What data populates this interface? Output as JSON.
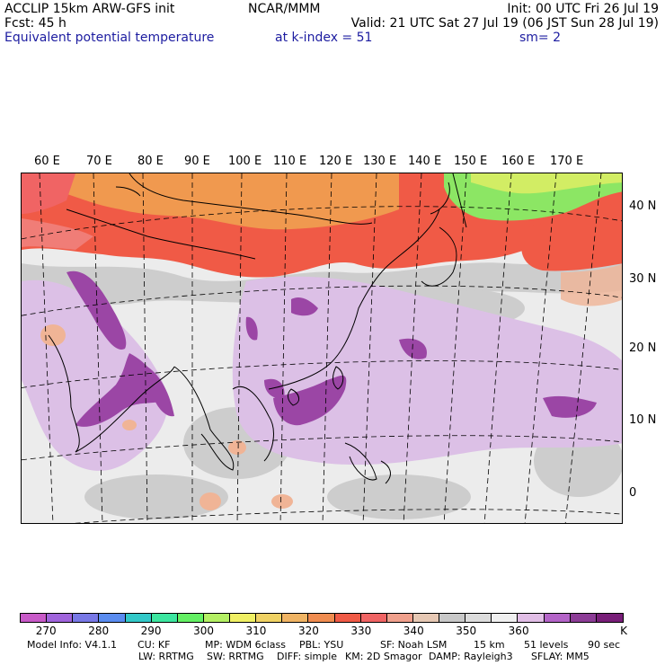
{
  "header": {
    "line1_left": "ACCLIP 15km ARW-GFS init",
    "line1_mid": "NCAR/MMM",
    "line1_right": "Init: 00 UTC Fri 26 Jul 19",
    "line2_left": "Fcst:   45 h",
    "line2_right": "Valid: 21 UTC Sat 27 Jul 19 (06 JST Sun 28 Jul 19)",
    "line3_left": "Equivalent potential temperature",
    "line3_mid": "at k-index =  51",
    "line3_right": "sm= 2"
  },
  "lon_labels": [
    "60 E",
    "70 E",
    "80 E",
    "90 E",
    "100 E",
    "110 E",
    "120 E",
    "130 E",
    "140 E",
    "150 E",
    "160 E",
    "170 E"
  ],
  "lat_labels": [
    "40 N",
    "30 N",
    "20 N",
    "10 N",
    "0"
  ],
  "colorbar": {
    "colors": [
      "#c85ac8",
      "#a064dc",
      "#7878e6",
      "#5a8cf0",
      "#32c8c8",
      "#3ce6a0",
      "#64f064",
      "#b4f064",
      "#f0f064",
      "#f0d264",
      "#f0b464",
      "#f08c50",
      "#f05a46",
      "#f06464",
      "#f0a08c",
      "#e6c8b4",
      "#c8c8c8",
      "#dcdcdc",
      "#f0f0f0",
      "#e1bee6",
      "#b464c8",
      "#8c3c96",
      "#781e78"
    ],
    "tick_labels": [
      "270",
      "280",
      "290",
      "300",
      "310",
      "320",
      "330",
      "340",
      "350",
      "360"
    ],
    "unit": "K"
  },
  "footer": {
    "line1": [
      "Model Info: V4.1.1",
      "CU: KF",
      "MP: WDM 6class",
      "PBL: YSU",
      "SF: Noah LSM",
      "15 km",
      "51 levels",
      "90 sec"
    ],
    "line2": [
      "LW: RRTMG",
      "SW: RRTMG",
      "DIFF: simple",
      "KM: 2D Smagor",
      "DAMP: Rayleigh3",
      "SFLAY: MM5"
    ]
  },
  "map_colors": {
    "background": "#e8e8e8",
    "red_band": "#f05a46",
    "orange": "#f0a050",
    "green": "#8ce664",
    "purple_light": "#d7b4e1",
    "purple_dark": "#9b46a5",
    "gray": "#c8c8c8",
    "peach": "#f0b496"
  }
}
